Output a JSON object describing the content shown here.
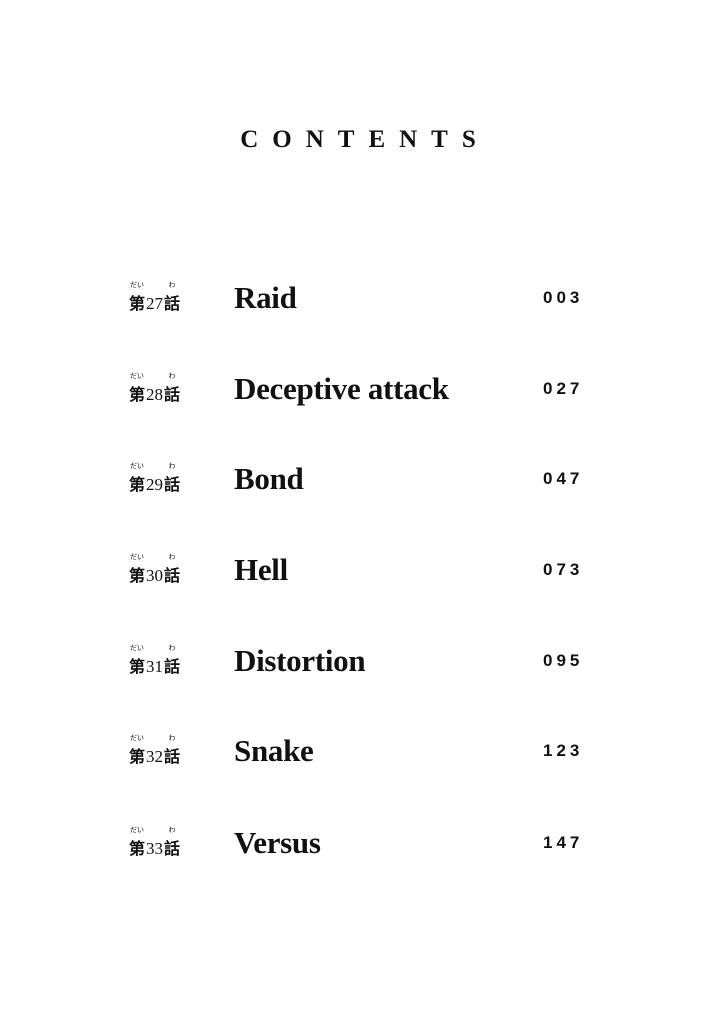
{
  "title": "CONTENTS",
  "furigana": {
    "dai": "だい",
    "wa": "わ"
  },
  "chapter_prefix": "第",
  "chapter_suffix": "話",
  "chapters": [
    {
      "number": "27",
      "name": "Raid",
      "page": "003"
    },
    {
      "number": "28",
      "name": "Deceptive attack",
      "page": "027"
    },
    {
      "number": "29",
      "name": "Bond",
      "page": "047"
    },
    {
      "number": "30",
      "name": "Hell",
      "page": "073"
    },
    {
      "number": "31",
      "name": "Distortion",
      "page": "095"
    },
    {
      "number": "32",
      "name": "Snake",
      "page": "123"
    },
    {
      "number": "33",
      "name": "Versus",
      "page": "147"
    }
  ]
}
